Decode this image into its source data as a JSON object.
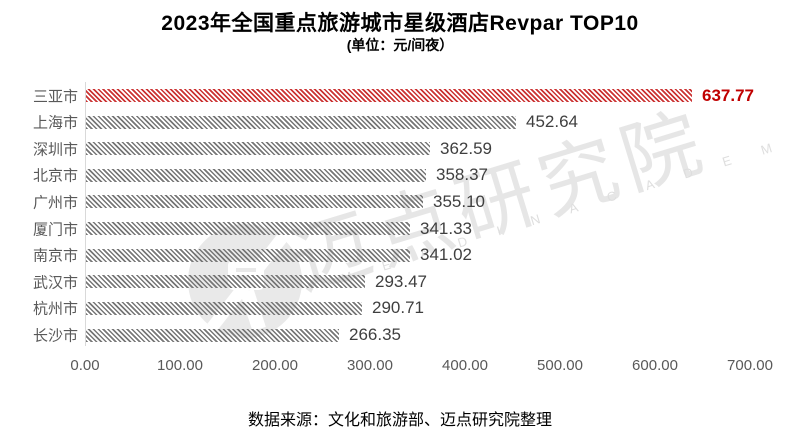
{
  "title": "2023年全国重点旅游城市星级酒店Revpar TOP10",
  "subtitle": "(单位：元/间夜）",
  "footer": "数据来源：文化和旅游部、迈点研究院整理",
  "watermark": {
    "logo": "meadin-circle-logo",
    "text_cn": "迈点研究院",
    "text_en": "M E A D I N  A C A D E M Y"
  },
  "colors": {
    "highlight_red": "#c00000",
    "bar_red_stripe": "#cb3333",
    "bar_gray_stripe": "#777777",
    "category_label": "#595959",
    "value_label": "#3f3f3f",
    "axis_line": "#d9d9d9",
    "watermark_gray": "#e6e6e6"
  },
  "chart_data": {
    "type": "bar",
    "orientation": "horizontal",
    "title": "2023年全国重点旅游城市星级酒店Revpar TOP10",
    "unit": "元/间夜",
    "categories": [
      "三亚市",
      "上海市",
      "深圳市",
      "北京市",
      "广州市",
      "厦门市",
      "南京市",
      "武汉市",
      "杭州市",
      "长沙市"
    ],
    "values": [
      637.77,
      452.64,
      362.59,
      358.37,
      355.1,
      341.33,
      341.02,
      293.47,
      290.71,
      266.35
    ],
    "value_labels": [
      "637.77",
      "452.64",
      "362.59",
      "358.37",
      "355.10",
      "341.33",
      "341.02",
      "293.47",
      "290.71",
      "266.35"
    ],
    "highlight_index": 0,
    "x_ticks": [
      "0.00",
      "100.00",
      "200.00",
      "300.00",
      "400.00",
      "500.00",
      "600.00",
      "700.00"
    ],
    "xlim": [
      0,
      700
    ],
    "grid": false,
    "legend": false
  }
}
